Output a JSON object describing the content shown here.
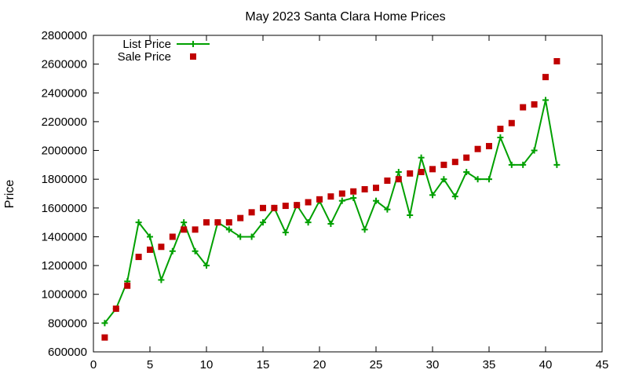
{
  "chart_data": {
    "type": "scatter",
    "title": "May 2023 Santa Clara Home Prices",
    "xlabel": "",
    "ylabel": "Price",
    "xlim": [
      0,
      45
    ],
    "ylim": [
      600000,
      2800000
    ],
    "xticks": [
      0,
      5,
      10,
      15,
      20,
      25,
      30,
      35,
      40,
      45
    ],
    "yticks": [
      600000,
      800000,
      1000000,
      1200000,
      1400000,
      1600000,
      1800000,
      2000000,
      2200000,
      2400000,
      2600000,
      2800000
    ],
    "grid": false,
    "legend_position": "top-left",
    "series": [
      {
        "name": "List Price",
        "style": "linespoints",
        "color": "#00a000",
        "marker": "plus",
        "x": [
          1,
          2,
          3,
          4,
          5,
          6,
          7,
          8,
          9,
          10,
          11,
          12,
          13,
          14,
          15,
          16,
          17,
          18,
          19,
          20,
          21,
          22,
          23,
          24,
          25,
          26,
          27,
          28,
          29,
          30,
          31,
          32,
          33,
          34,
          35,
          36,
          37,
          38,
          39,
          40,
          41
        ],
        "y": [
          800000,
          900000,
          1090000,
          1500000,
          1400000,
          1100000,
          1300000,
          1500000,
          1300000,
          1200000,
          1500000,
          1450000,
          1400000,
          1400000,
          1500000,
          1600000,
          1430000,
          1620000,
          1500000,
          1650000,
          1490000,
          1650000,
          1670000,
          1450000,
          1650000,
          1590000,
          1850000,
          1550000,
          1950000,
          1690000,
          1800000,
          1680000,
          1850000,
          1800000,
          1800000,
          2090000,
          1900000,
          1900000,
          2000000,
          2350000,
          1900000
        ]
      },
      {
        "name": "Sale Price",
        "style": "points",
        "color": "#c00000",
        "marker": "square",
        "x": [
          1,
          2,
          3,
          4,
          5,
          6,
          7,
          8,
          9,
          10,
          11,
          12,
          13,
          14,
          15,
          16,
          17,
          18,
          19,
          20,
          21,
          22,
          23,
          24,
          25,
          26,
          27,
          28,
          29,
          30,
          31,
          32,
          33,
          34,
          35,
          36,
          37,
          38,
          39,
          40,
          41
        ],
        "y": [
          700000,
          900000,
          1060000,
          1260000,
          1310000,
          1330000,
          1400000,
          1450000,
          1450000,
          1500000,
          1500000,
          1500000,
          1530000,
          1570000,
          1600000,
          1600000,
          1615000,
          1620000,
          1640000,
          1660000,
          1680000,
          1700000,
          1715000,
          1730000,
          1740000,
          1790000,
          1800000,
          1840000,
          1850000,
          1870000,
          1900000,
          1920000,
          1950000,
          2010000,
          2030000,
          2150000,
          2190000,
          2300000,
          2320000,
          2510000,
          2620000
        ]
      }
    ]
  }
}
